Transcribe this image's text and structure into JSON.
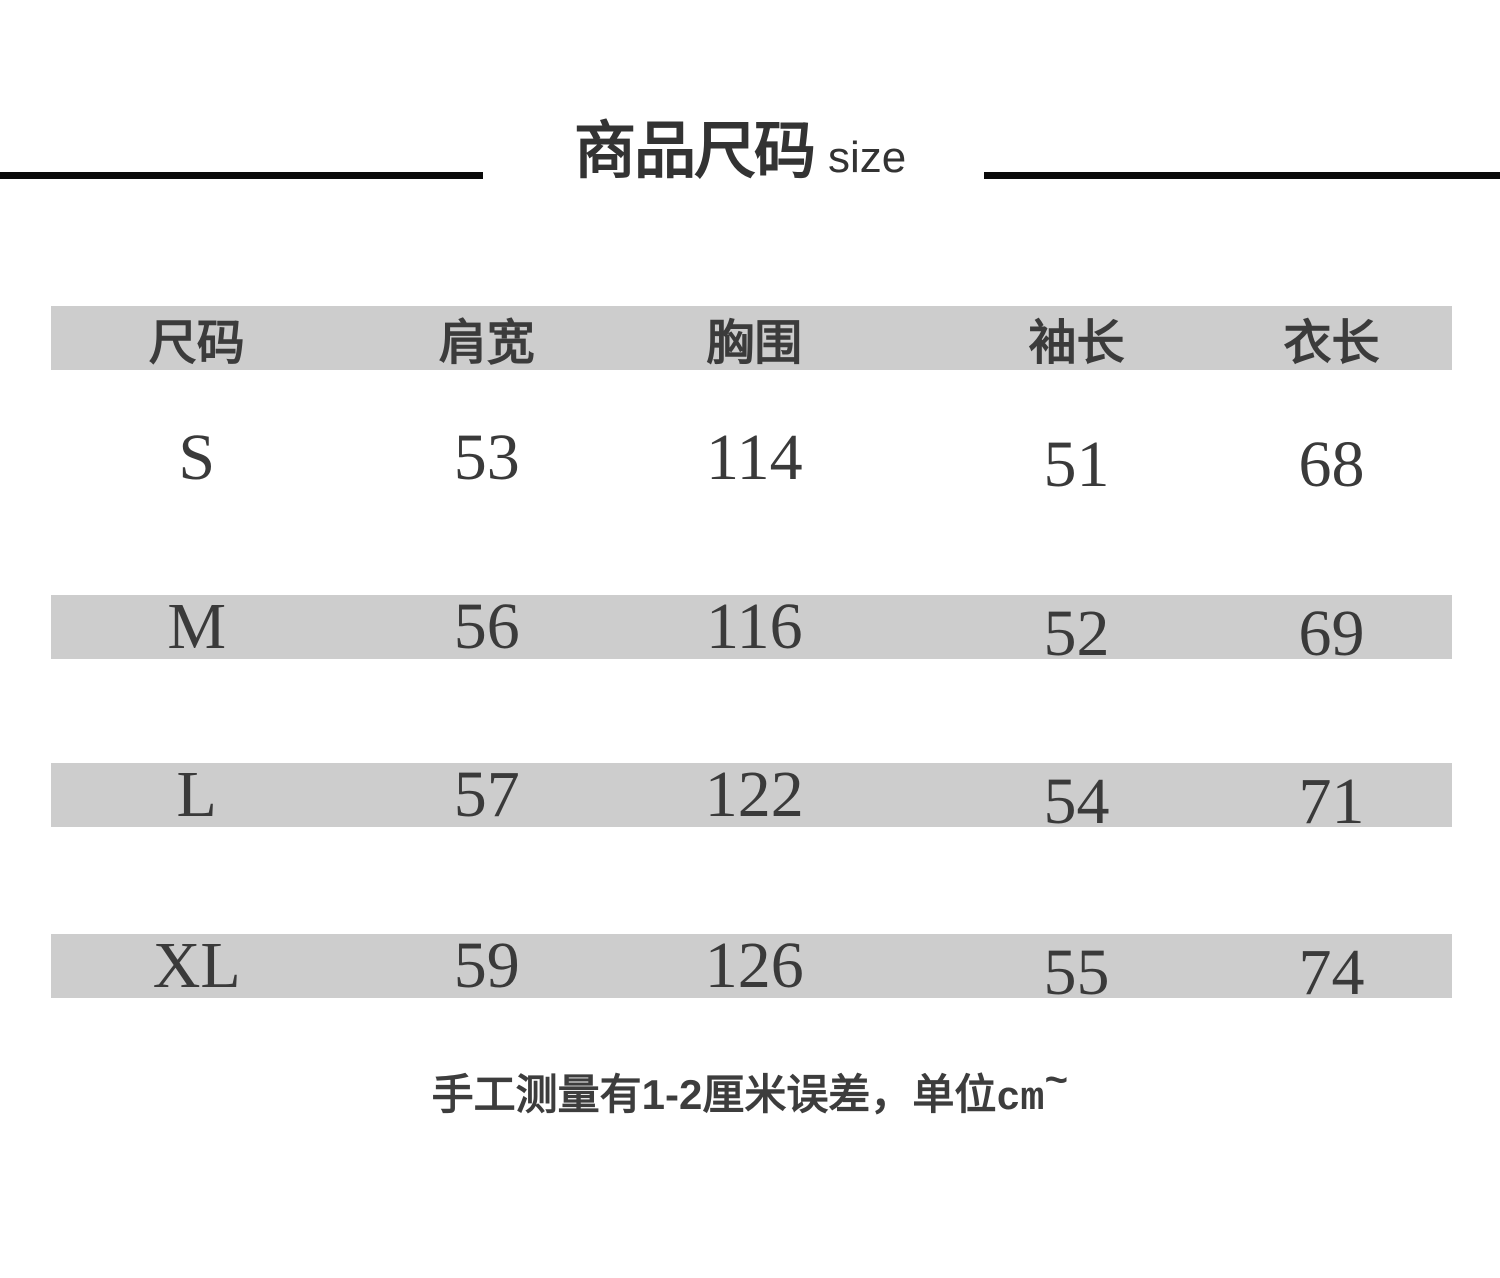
{
  "page": {
    "background": "#ffffff"
  },
  "header": {
    "title": "商品尺码",
    "subtitle": "size"
  },
  "size_table": {
    "columns": [
      "尺码",
      "肩宽",
      "胸围",
      "袖长",
      "衣长"
    ],
    "rows": [
      {
        "size": "S",
        "values": [
          "53",
          "114",
          "51",
          "68"
        ]
      },
      {
        "size": "M",
        "values": [
          "56",
          "116",
          "52",
          "69"
        ]
      },
      {
        "size": "L",
        "values": [
          "57",
          "122",
          "54",
          "71"
        ]
      },
      {
        "size": "XL",
        "values": [
          "59",
          "126",
          "55",
          "74"
        ]
      }
    ]
  },
  "footer": {
    "note": "手工测量有1-2厘米误差，单位",
    "unit": "cm",
    "tilde": "~"
  },
  "colors": {
    "row_shade": "#cdcdcd",
    "text_dark": "#3a3a3a",
    "divider": "#0a0a0a"
  }
}
